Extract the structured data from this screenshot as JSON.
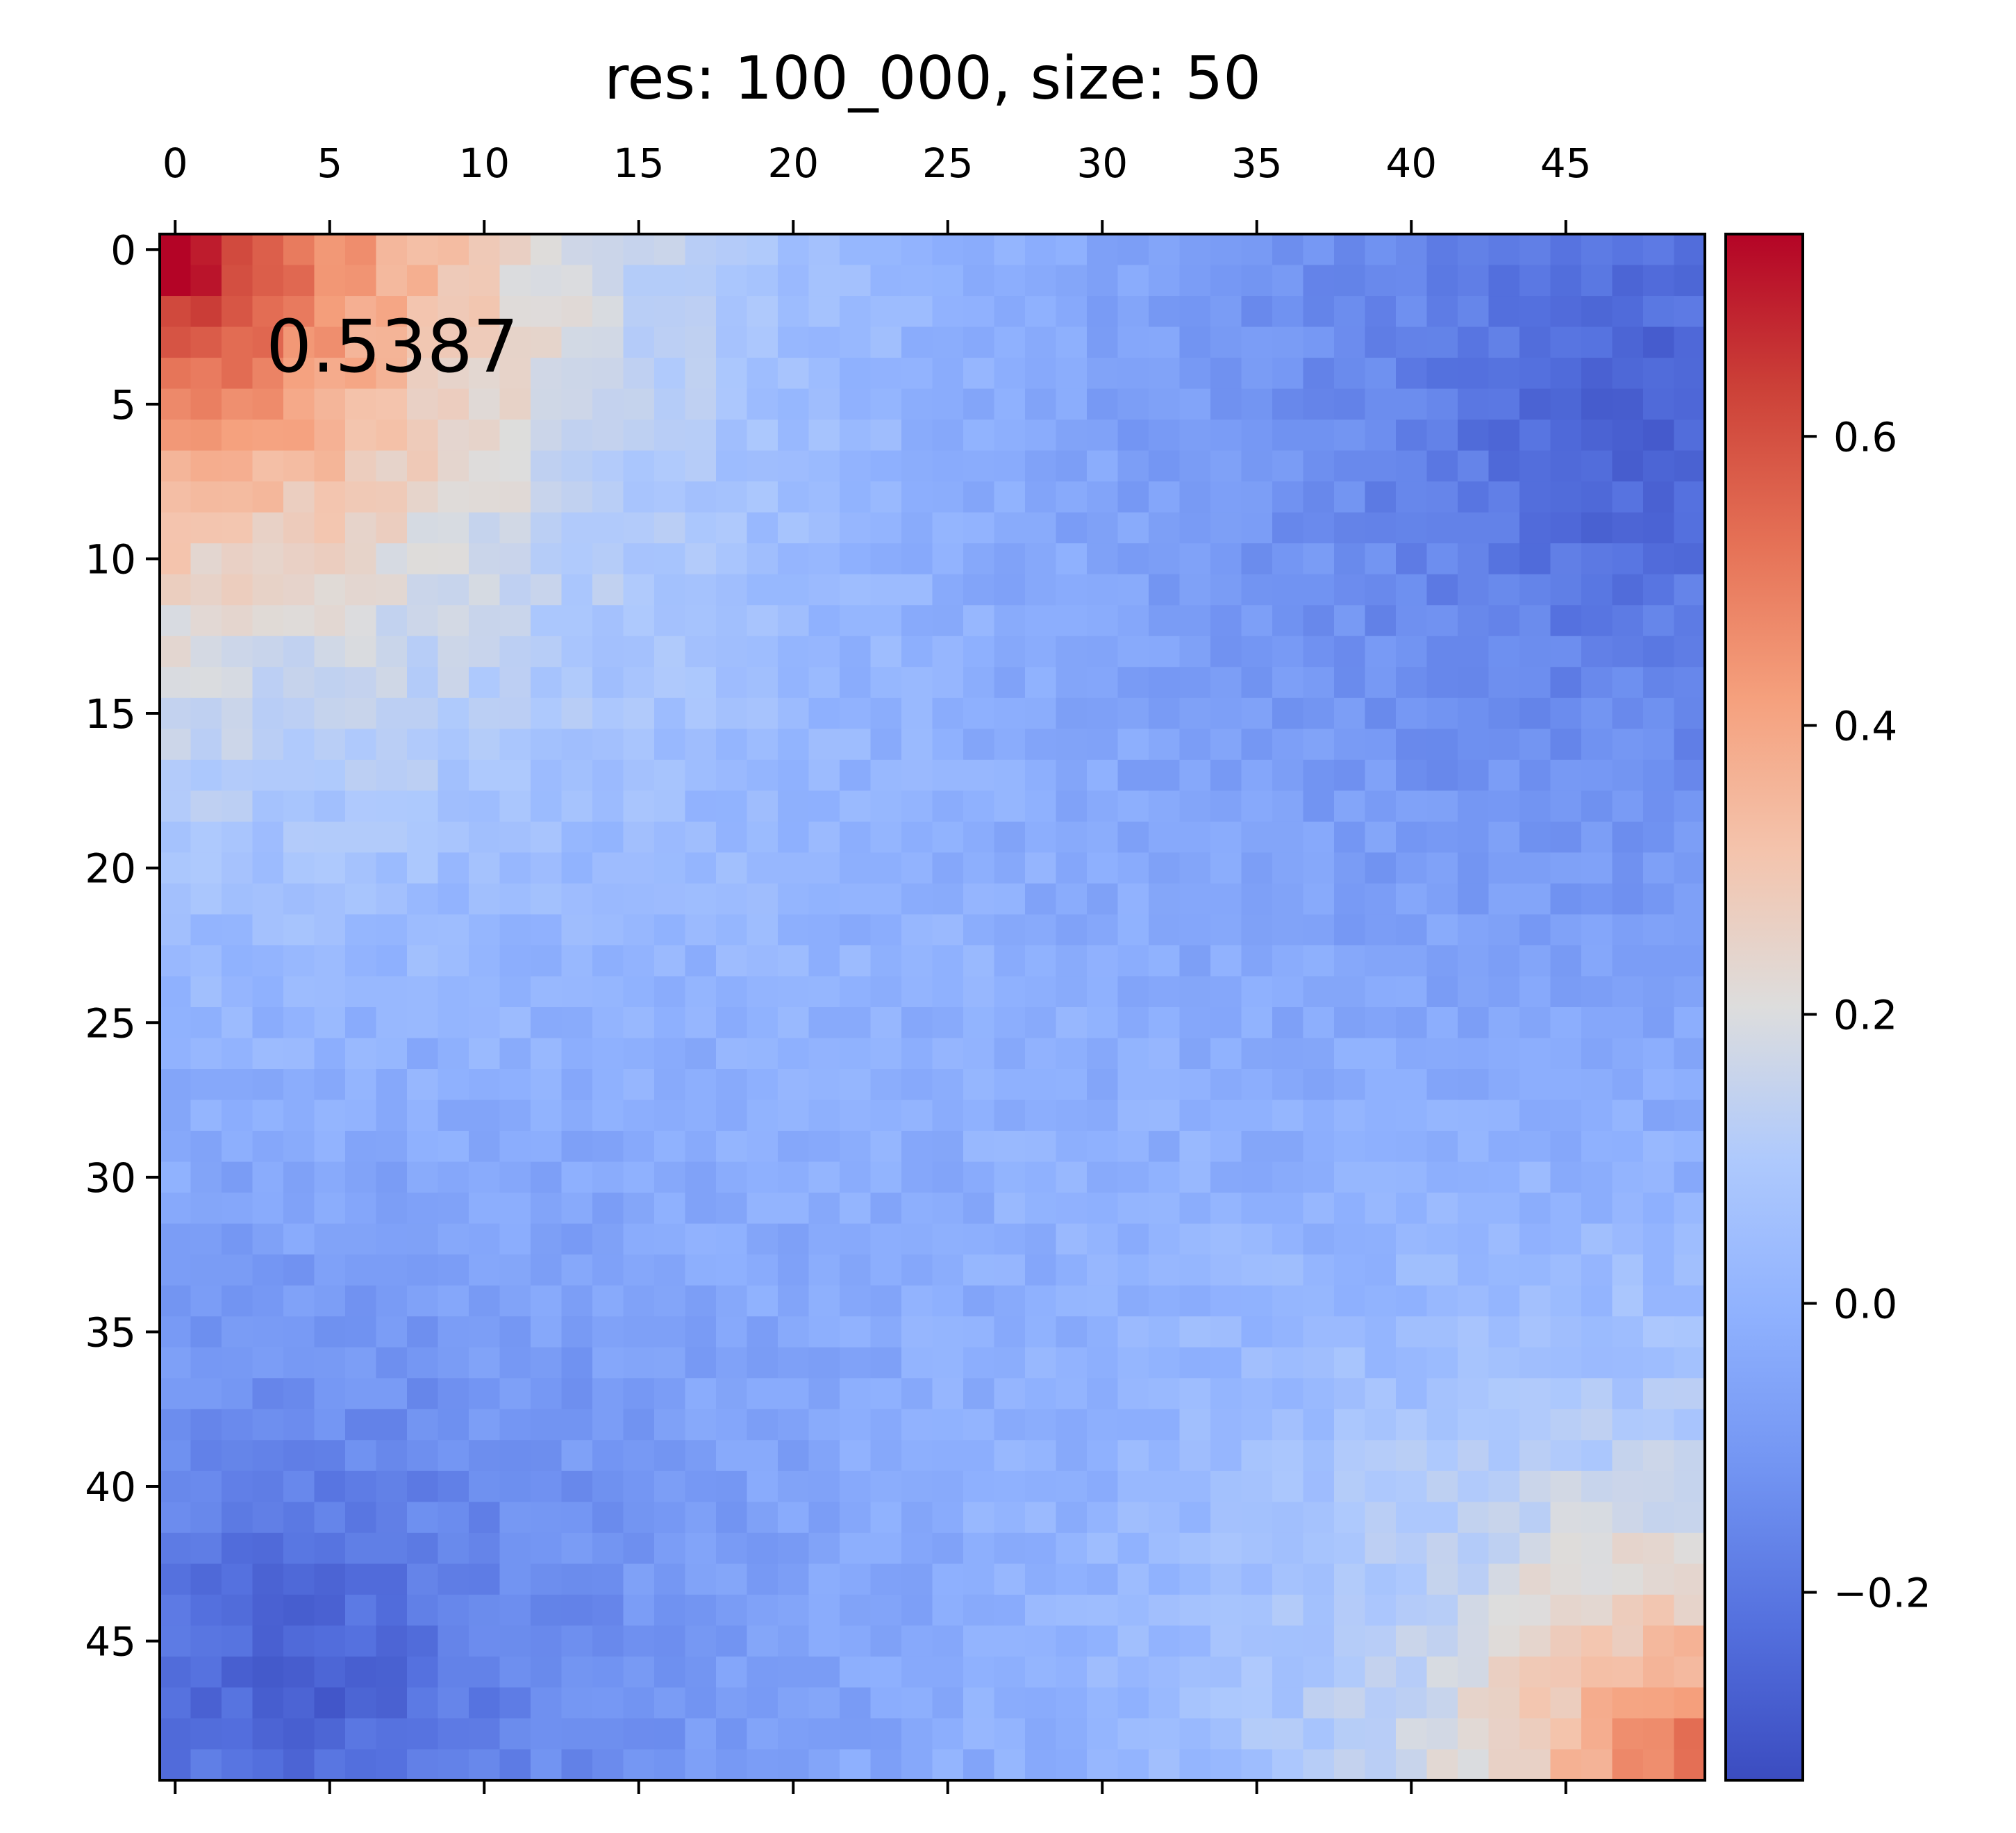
{
  "chart_data": {
    "type": "heatmap",
    "title": "res: 100_000, size: 50",
    "annotation": "0.5387",
    "xlabel": "",
    "ylabel": "",
    "x_ticks": [
      "0",
      "5",
      "10",
      "15",
      "20",
      "25",
      "30",
      "35",
      "40",
      "45"
    ],
    "y_ticks": [
      "0",
      "5",
      "10",
      "15",
      "20",
      "25",
      "30",
      "35",
      "40",
      "45"
    ],
    "x_axis_position": "top",
    "n_rows": 50,
    "n_cols": 50,
    "colormap": "coolwarm",
    "vmin": -0.33,
    "vmax": 0.74,
    "colorbar": {
      "position": "right",
      "ticks": [
        -0.2,
        0.0,
        0.2,
        0.4,
        0.6
      ],
      "tick_labels": [
        "−0.2",
        "0.0",
        "0.2",
        "0.4",
        "0.6"
      ]
    },
    "value_model": {
      "description": "matrix values estimated from the image as a smooth field with deterministic cell noise",
      "anchors": [
        {
          "row": 0,
          "col": 0,
          "value": 0.73
        },
        {
          "row": 3,
          "col": 3,
          "value": 0.54
        },
        {
          "row": 8,
          "col": 8,
          "value": 0.36
        },
        {
          "row": 3,
          "col": 47,
          "value": -0.27
        },
        {
          "row": 12,
          "col": 44,
          "value": -0.25
        },
        {
          "row": 46,
          "col": 5,
          "value": -0.26
        },
        {
          "row": 49,
          "col": 3,
          "value": -0.3
        },
        {
          "row": 47,
          "col": 49,
          "value": 0.5
        },
        {
          "row": 40,
          "col": 48,
          "value": 0.35
        },
        {
          "row": 25,
          "col": 25,
          "value": 0.0
        }
      ]
    }
  }
}
